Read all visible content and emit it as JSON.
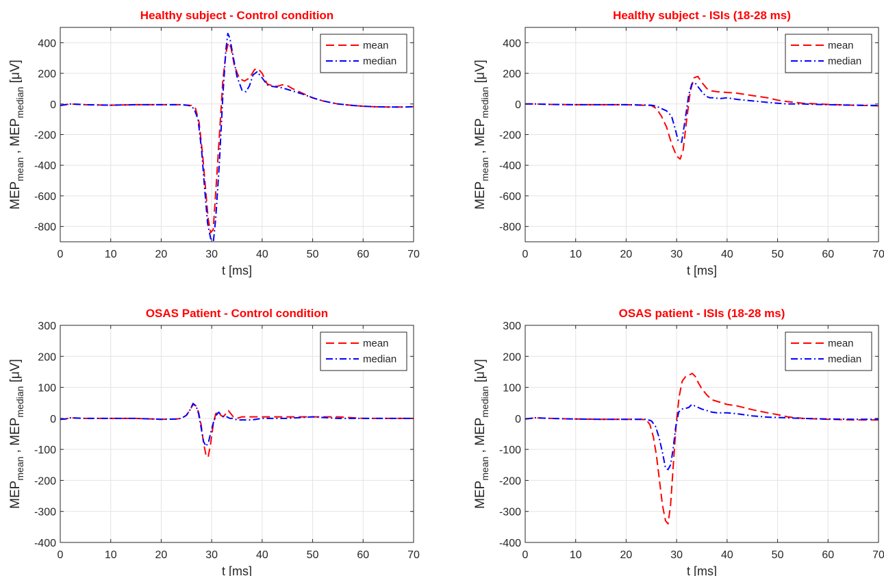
{
  "chart_data": [
    {
      "type": "line",
      "title": "Healthy subject - Control condition",
      "xlabel": "t [ms]",
      "ylabel_base": "MEP",
      "ylabel_sub1": "mean",
      "ylabel_sep": " , ",
      "ylabel_sub2": "median",
      "ylabel_unit": " [μV]",
      "xlim": [
        0,
        70
      ],
      "ylim": [
        -900,
        500
      ],
      "xticks": [
        0,
        10,
        20,
        30,
        40,
        50,
        60,
        70
      ],
      "yticks": [
        -800,
        -600,
        -400,
        -200,
        0,
        200,
        400
      ],
      "grid": true,
      "legend_position": "top-right",
      "series": [
        {
          "name": "mean",
          "color": "#ff0000",
          "style": "dashed",
          "x": [
            0,
            1,
            2,
            5,
            10,
            15,
            20,
            24,
            26,
            26.8,
            27.5,
            28.2,
            28.8,
            29.3,
            29.8,
            30.3,
            30.8,
            31.5,
            32.2,
            32.8,
            33.3,
            33.8,
            34.5,
            35.5,
            36.5,
            37.5,
            38.5,
            39.2,
            40,
            41,
            42,
            43,
            44,
            45,
            46,
            48,
            50,
            52,
            55,
            58,
            60,
            62,
            65,
            68,
            70
          ],
          "y": [
            -10,
            -5,
            0,
            -5,
            -8,
            -5,
            -5,
            -5,
            -10,
            -30,
            -120,
            -330,
            -560,
            -750,
            -840,
            -820,
            -580,
            -220,
            150,
            330,
            400,
            370,
            250,
            165,
            150,
            170,
            225,
            230,
            200,
            130,
            120,
            115,
            125,
            120,
            100,
            70,
            40,
            20,
            0,
            -10,
            -15,
            -18,
            -20,
            -20,
            -18
          ]
        },
        {
          "name": "median",
          "color": "#0000ff",
          "style": "dashdot",
          "x": [
            0,
            1,
            2,
            5,
            10,
            15,
            20,
            24,
            25.5,
            26.5,
            27.3,
            28,
            28.6,
            29.2,
            29.8,
            30.3,
            30.8,
            31.5,
            32.2,
            32.8,
            33.2,
            33.6,
            34.2,
            35,
            36,
            36.8,
            37.5,
            38.2,
            39,
            40,
            41,
            42,
            43,
            44,
            45,
            46,
            48,
            50,
            52,
            55,
            58,
            60,
            62,
            65,
            68,
            70
          ],
          "y": [
            -10,
            -5,
            0,
            -5,
            -8,
            -5,
            -5,
            -5,
            -10,
            -30,
            -100,
            -300,
            -550,
            -780,
            -880,
            -910,
            -750,
            -400,
            50,
            350,
            460,
            430,
            320,
            180,
            90,
            80,
            120,
            190,
            210,
            170,
            125,
            115,
            110,
            105,
            95,
            85,
            65,
            40,
            20,
            0,
            -10,
            -15,
            -18,
            -20,
            -20,
            -18
          ]
        }
      ]
    },
    {
      "type": "line",
      "title": "Healthy subject - ISIs (18-28 ms)",
      "xlabel": "t [ms]",
      "ylabel_base": "MEP",
      "ylabel_sub1": "mean",
      "ylabel_sep": " , ",
      "ylabel_sub2": "median",
      "ylabel_unit": " [μV]",
      "xlim": [
        0,
        70
      ],
      "ylim": [
        -900,
        500
      ],
      "xticks": [
        0,
        10,
        20,
        30,
        40,
        50,
        60,
        70
      ],
      "yticks": [
        -800,
        -600,
        -400,
        -200,
        0,
        200,
        400
      ],
      "grid": true,
      "legend_position": "top-right",
      "series": [
        {
          "name": "mean",
          "color": "#ff0000",
          "style": "dashed",
          "x": [
            0,
            2,
            5,
            10,
            15,
            20,
            25,
            26,
            27,
            28,
            29,
            30,
            30.7,
            31.3,
            32,
            32.7,
            33.4,
            34.2,
            35,
            36,
            37,
            38,
            40,
            42,
            45,
            48,
            50,
            52,
            55,
            58,
            60,
            65,
            70
          ],
          "y": [
            0,
            0,
            -3,
            -5,
            -5,
            -5,
            -10,
            -30,
            -80,
            -150,
            -260,
            -340,
            -360,
            -300,
            -100,
            80,
            170,
            180,
            140,
            100,
            85,
            80,
            75,
            70,
            55,
            40,
            25,
            15,
            5,
            0,
            -3,
            -8,
            -12
          ]
        },
        {
          "name": "median",
          "color": "#0000ff",
          "style": "dashdot",
          "x": [
            0,
            2,
            5,
            10,
            15,
            20,
            25,
            26,
            27,
            28,
            29,
            29.7,
            30.3,
            31,
            31.7,
            32.4,
            33,
            33.6,
            34.3,
            35,
            35.8,
            36.6,
            37.5,
            38.5,
            40,
            42,
            45,
            48,
            50,
            52,
            55,
            58,
            60,
            65,
            70
          ],
          "y": [
            0,
            0,
            -3,
            -5,
            -5,
            -5,
            -8,
            -15,
            -30,
            -45,
            -80,
            -160,
            -240,
            -250,
            -100,
            60,
            130,
            140,
            110,
            80,
            50,
            40,
            40,
            35,
            40,
            30,
            20,
            10,
            5,
            0,
            0,
            -3,
            -5,
            -8,
            -10
          ]
        }
      ]
    },
    {
      "type": "line",
      "title": "OSAS Patient - Control condition",
      "xlabel": "t [ms]",
      "ylabel_base": "MEP",
      "ylabel_sub1": "mean",
      "ylabel_sep": " , ",
      "ylabel_sub2": "median",
      "ylabel_unit": " [μV]",
      "xlim": [
        0,
        70
      ],
      "ylim": [
        -400,
        300
      ],
      "xticks": [
        0,
        10,
        20,
        30,
        40,
        50,
        60,
        70
      ],
      "yticks": [
        -400,
        -300,
        -200,
        -100,
        0,
        100,
        200,
        300
      ],
      "grid": true,
      "legend_position": "top-right",
      "series": [
        {
          "name": "mean",
          "color": "#ff0000",
          "style": "dashed",
          "x": [
            0,
            1,
            2,
            5,
            10,
            15,
            20,
            23,
            24,
            25,
            25.8,
            26.3,
            26.9,
            27.4,
            27.9,
            28.4,
            28.9,
            29.3,
            29.8,
            30.3,
            30.8,
            31.3,
            31.8,
            32.3,
            32.8,
            33.3,
            33.8,
            34.3,
            35,
            36,
            37,
            38,
            40,
            42,
            45,
            50,
            55,
            60,
            65,
            70
          ],
          "y": [
            -3,
            -2,
            2,
            0,
            0,
            0,
            -3,
            -2,
            0,
            10,
            30,
            45,
            40,
            20,
            -20,
            -80,
            -120,
            -125,
            -80,
            -20,
            15,
            20,
            10,
            5,
            15,
            25,
            15,
            5,
            0,
            5,
            5,
            5,
            5,
            5,
            5,
            5,
            5,
            0,
            0,
            0
          ]
        },
        {
          "name": "median",
          "color": "#0000ff",
          "style": "dashdot",
          "x": [
            0,
            1,
            2,
            5,
            10,
            15,
            20,
            23,
            24,
            25,
            25.8,
            26.3,
            26.9,
            27.4,
            27.9,
            28.4,
            28.9,
            29.4,
            29.9,
            30.4,
            30.9,
            31.4,
            31.9,
            32.4,
            33,
            33.6,
            34.2,
            35,
            36,
            37,
            38,
            40,
            42,
            45,
            50,
            55,
            60,
            65,
            70
          ],
          "y": [
            -3,
            -2,
            2,
            0,
            0,
            0,
            -3,
            -2,
            0,
            10,
            30,
            48,
            40,
            15,
            -30,
            -75,
            -90,
            -75,
            -40,
            -10,
            10,
            20,
            10,
            5,
            5,
            0,
            0,
            -5,
            -5,
            -5,
            -5,
            0,
            0,
            0,
            5,
            0,
            0,
            0,
            0
          ]
        }
      ]
    },
    {
      "type": "line",
      "title": "OSAS patient - ISIs (18-28 ms)",
      "xlabel": "t [ms]",
      "ylabel_base": "MEP",
      "ylabel_sub1": "mean",
      "ylabel_sep": " , ",
      "ylabel_sub2": "median",
      "ylabel_unit": " [μV]",
      "xlim": [
        0,
        70
      ],
      "ylim": [
        -400,
        300
      ],
      "xticks": [
        0,
        10,
        20,
        30,
        40,
        50,
        60,
        70
      ],
      "yticks": [
        -400,
        -300,
        -200,
        -100,
        0,
        100,
        200,
        300
      ],
      "grid": true,
      "legend_position": "top-right",
      "series": [
        {
          "name": "mean",
          "color": "#ff0000",
          "style": "dashed",
          "x": [
            0,
            2,
            5,
            10,
            15,
            20,
            23,
            24,
            24.7,
            25.4,
            26,
            26.6,
            27.2,
            27.8,
            28.3,
            28.8,
            29.3,
            29.9,
            30.5,
            31.1,
            31.8,
            32.5,
            33.1,
            33.7,
            34.3,
            35,
            36,
            37,
            38,
            40,
            42,
            45,
            48,
            50,
            52,
            55,
            60,
            65,
            70
          ],
          "y": [
            -2,
            2,
            0,
            -2,
            -3,
            -3,
            -3,
            -5,
            -20,
            -60,
            -120,
            -200,
            -280,
            -330,
            -340,
            -280,
            -160,
            -20,
            70,
            120,
            135,
            140,
            145,
            135,
            115,
            95,
            75,
            60,
            55,
            45,
            40,
            28,
            18,
            12,
            5,
            0,
            -3,
            -5,
            -5
          ]
        },
        {
          "name": "median",
          "color": "#0000ff",
          "style": "dashdot",
          "x": [
            0,
            2,
            5,
            10,
            15,
            20,
            24,
            25,
            25.8,
            26.5,
            27.2,
            27.8,
            28.3,
            28.8,
            29.3,
            29.8,
            30.4,
            31,
            31.7,
            32.4,
            33,
            33.6,
            34.3,
            35,
            36,
            37,
            38,
            40,
            42,
            45,
            48,
            50,
            55,
            60,
            65,
            70
          ],
          "y": [
            -2,
            2,
            0,
            -2,
            -3,
            -3,
            -3,
            -8,
            -25,
            -60,
            -110,
            -160,
            -165,
            -150,
            -100,
            -30,
            20,
            30,
            32,
            35,
            45,
            40,
            35,
            30,
            25,
            20,
            18,
            18,
            15,
            8,
            4,
            3,
            0,
            -2,
            -3,
            -3
          ]
        }
      ]
    }
  ]
}
